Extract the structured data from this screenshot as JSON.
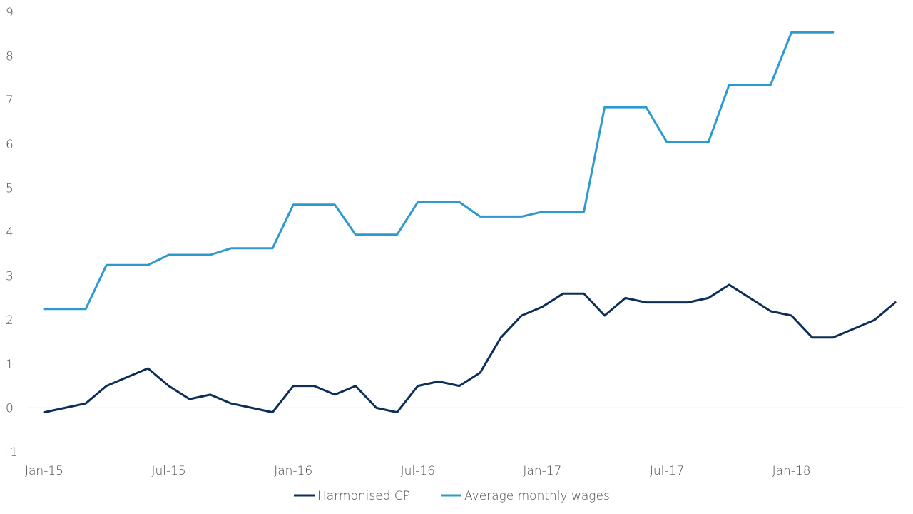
{
  "chart_data": {
    "type": "line",
    "title": "",
    "xlabel": "",
    "ylabel": "",
    "ylim": [
      -1,
      9
    ],
    "yticks": [
      "-1",
      "0",
      "1",
      "2",
      "3",
      "4",
      "5",
      "6",
      "7",
      "8",
      "9"
    ],
    "x_tick_labels": [
      "Jan-15",
      "Jul-15",
      "Jan-16",
      "Jul-16",
      "Jan-17",
      "Jul-17",
      "Jan-18"
    ],
    "x_tick_index": [
      0,
      6,
      12,
      18,
      24,
      30,
      36
    ],
    "x": [
      "Jan-15",
      "Feb-15",
      "Mar-15",
      "Apr-15",
      "May-15",
      "Jun-15",
      "Jul-15",
      "Aug-15",
      "Sep-15",
      "Oct-15",
      "Nov-15",
      "Dec-15",
      "Jan-16",
      "Feb-16",
      "Mar-16",
      "Apr-16",
      "May-16",
      "Jun-16",
      "Jul-16",
      "Aug-16",
      "Sep-16",
      "Oct-16",
      "Nov-16",
      "Dec-16",
      "Jan-17",
      "Feb-17",
      "Mar-17",
      "Apr-17",
      "May-17",
      "Jun-17",
      "Jul-17",
      "Aug-17",
      "Sep-17",
      "Oct-17",
      "Nov-17",
      "Dec-17",
      "Jan-18",
      "Feb-18",
      "Mar-18",
      "Apr-18",
      "May-18",
      "Jun-18"
    ],
    "grid": false,
    "legend_position": "bottom",
    "series": [
      {
        "name": "Harmonised CPI",
        "color": "#0d2e57",
        "values": [
          -0.1,
          0.0,
          0.1,
          0.5,
          0.7,
          0.9,
          0.5,
          0.2,
          0.3,
          0.1,
          0.0,
          -0.1,
          0.5,
          0.5,
          0.3,
          0.5,
          0.0,
          -0.1,
          0.5,
          0.6,
          0.5,
          0.8,
          1.6,
          2.1,
          2.3,
          2.6,
          2.6,
          2.1,
          2.5,
          2.4,
          2.4,
          2.4,
          2.5,
          2.8,
          2.5,
          2.2,
          2.1,
          1.6,
          1.6,
          1.8,
          2.0,
          2.4
        ]
      },
      {
        "name": "Average monthly wages",
        "color": "#2c9ad1",
        "values": [
          2.25,
          2.25,
          2.25,
          3.25,
          3.25,
          3.25,
          3.48,
          3.48,
          3.48,
          3.63,
          3.63,
          3.63,
          4.62,
          4.62,
          4.62,
          3.94,
          3.94,
          3.94,
          4.68,
          4.68,
          4.68,
          4.35,
          4.35,
          4.35,
          4.46,
          4.46,
          4.46,
          6.84,
          6.84,
          6.84,
          6.04,
          6.04,
          6.04,
          7.35,
          7.35,
          7.35,
          8.54,
          8.54,
          8.54,
          null,
          null,
          null
        ]
      }
    ]
  }
}
